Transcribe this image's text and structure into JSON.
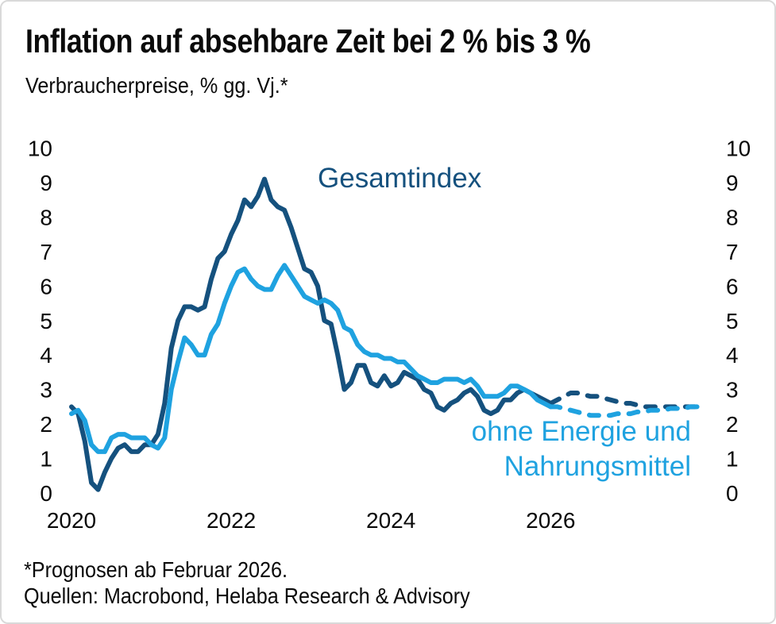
{
  "chart_data": {
    "type": "line",
    "title": "Inflation auf absehbare Zeit bei 2 % bis 3 %",
    "subtitle": "Verbraucherpreise, % gg. Vj.*",
    "footnote": "*Prognosen ab Februar 2026.",
    "source": "Quellen: Macrobond, Helaba Research & Advisory",
    "unit": "%",
    "frequency": "monthly",
    "x_start": "2020-01",
    "x_end": "2027-12",
    "forecast_from": "2026-02",
    "forecast_start_index": 73,
    "forecast_style": "dashed",
    "grid": false,
    "legend_position": "inline-labels",
    "ylim": [
      0,
      10
    ],
    "y_ticks": [
      0,
      1,
      2,
      3,
      4,
      5,
      6,
      7,
      8,
      9,
      10
    ],
    "y_axis_sides": [
      "left",
      "right"
    ],
    "x_ticks": [
      {
        "label": "2020",
        "month_index": 0
      },
      {
        "label": "2022",
        "month_index": 24
      },
      {
        "label": "2024",
        "month_index": 48
      },
      {
        "label": "2026",
        "month_index": 72
      }
    ],
    "series": [
      {
        "id": "gesamtindex",
        "name": "Gesamtindex",
        "color": "#15517E",
        "values": [
          2.5,
          2.3,
          1.5,
          0.3,
          0.1,
          0.6,
          1.0,
          1.3,
          1.4,
          1.2,
          1.2,
          1.4,
          1.4,
          1.7,
          2.6,
          4.2,
          5.0,
          5.4,
          5.4,
          5.3,
          5.4,
          6.2,
          6.8,
          7.0,
          7.5,
          7.9,
          8.5,
          8.3,
          8.6,
          9.1,
          8.5,
          8.3,
          8.2,
          7.7,
          7.1,
          6.5,
          6.4,
          6.0,
          5.0,
          4.9,
          4.0,
          3.0,
          3.2,
          3.7,
          3.7,
          3.2,
          3.1,
          3.4,
          3.1,
          3.2,
          3.5,
          3.4,
          3.3,
          3.0,
          2.9,
          2.5,
          2.4,
          2.6,
          2.7,
          2.9,
          3.0,
          2.8,
          2.4,
          2.3,
          2.4,
          2.7,
          2.7,
          2.9,
          3.0,
          2.9,
          2.8,
          2.7,
          2.6,
          2.7,
          2.8,
          2.9,
          2.9,
          2.85,
          2.8,
          2.8,
          2.75,
          2.7,
          2.65,
          2.6,
          2.6,
          2.55,
          2.5,
          2.5,
          2.5,
          2.5,
          2.5,
          2.5,
          2.5,
          2.5,
          2.5,
          2.5
        ]
      },
      {
        "id": "core",
        "name": "ohne Energie und Nahrungsmittel",
        "color": "#1FA2E0",
        "values": [
          2.3,
          2.4,
          2.1,
          1.4,
          1.2,
          1.2,
          1.6,
          1.7,
          1.7,
          1.6,
          1.6,
          1.6,
          1.4,
          1.3,
          1.6,
          3.0,
          3.8,
          4.5,
          4.3,
          4.0,
          4.0,
          4.6,
          4.9,
          5.5,
          6.0,
          6.4,
          6.5,
          6.2,
          6.0,
          5.9,
          5.9,
          6.3,
          6.6,
          6.3,
          6.0,
          5.7,
          5.6,
          5.5,
          5.6,
          5.5,
          5.3,
          4.8,
          4.7,
          4.3,
          4.1,
          4.0,
          4.0,
          3.9,
          3.9,
          3.8,
          3.8,
          3.6,
          3.4,
          3.3,
          3.2,
          3.2,
          3.3,
          3.3,
          3.3,
          3.2,
          3.3,
          3.1,
          2.8,
          2.8,
          2.8,
          2.9,
          3.1,
          3.1,
          3.0,
          2.9,
          2.7,
          2.6,
          2.5,
          2.5,
          2.45,
          2.4,
          2.35,
          2.3,
          2.25,
          2.25,
          2.25,
          2.25,
          2.3,
          2.3,
          2.3,
          2.35,
          2.35,
          2.4,
          2.4,
          2.4,
          2.45,
          2.45,
          2.45,
          2.5,
          2.5,
          2.5
        ]
      }
    ],
    "colors": {
      "headline_line": "#15517E",
      "core_line": "#1FA2E0",
      "text": "#0a0a0a",
      "card_border": "#d9d9d9"
    }
  }
}
